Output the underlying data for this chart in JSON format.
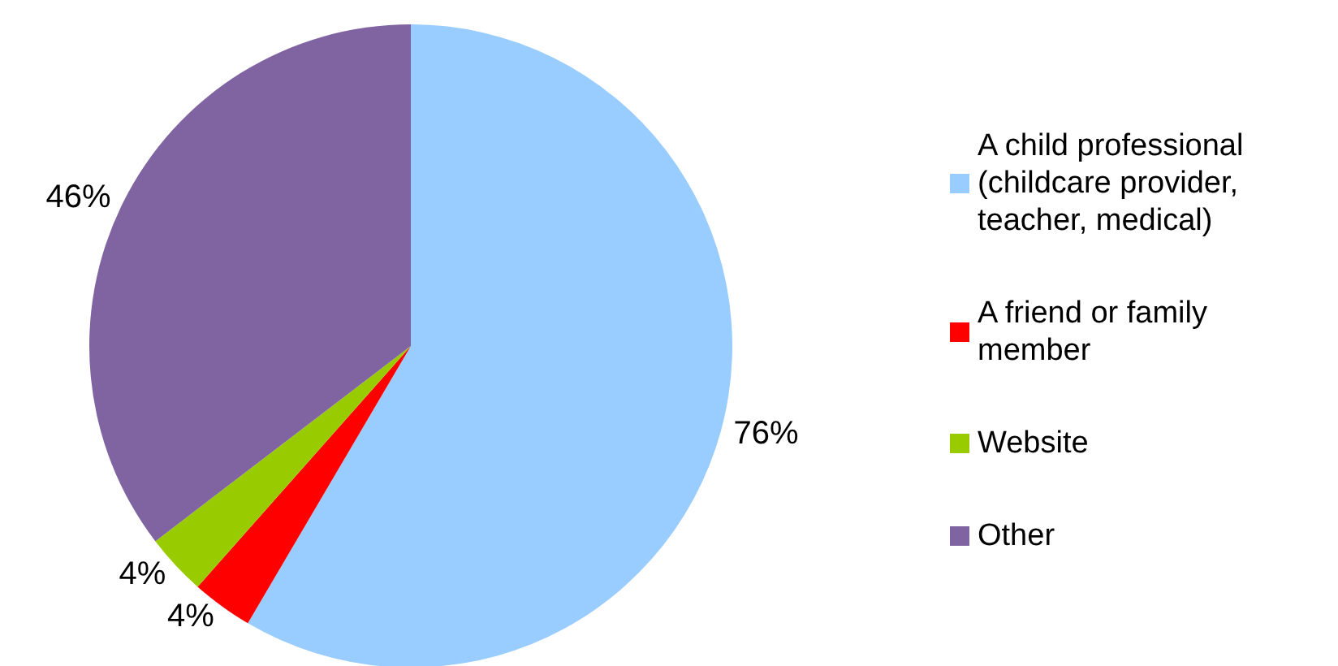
{
  "chart_data": {
    "type": "pie",
    "categories": [
      "A child professional (childcare provider, teacher, medical)",
      "A friend or family member",
      "Website",
      "Other"
    ],
    "values": [
      76,
      4,
      4,
      46
    ],
    "colors": [
      "#99ccff",
      "#ff0000",
      "#99cc00",
      "#8064a2"
    ],
    "value_labels": [
      "76%",
      "4%",
      "4%",
      "46%"
    ],
    "legend": "right"
  }
}
